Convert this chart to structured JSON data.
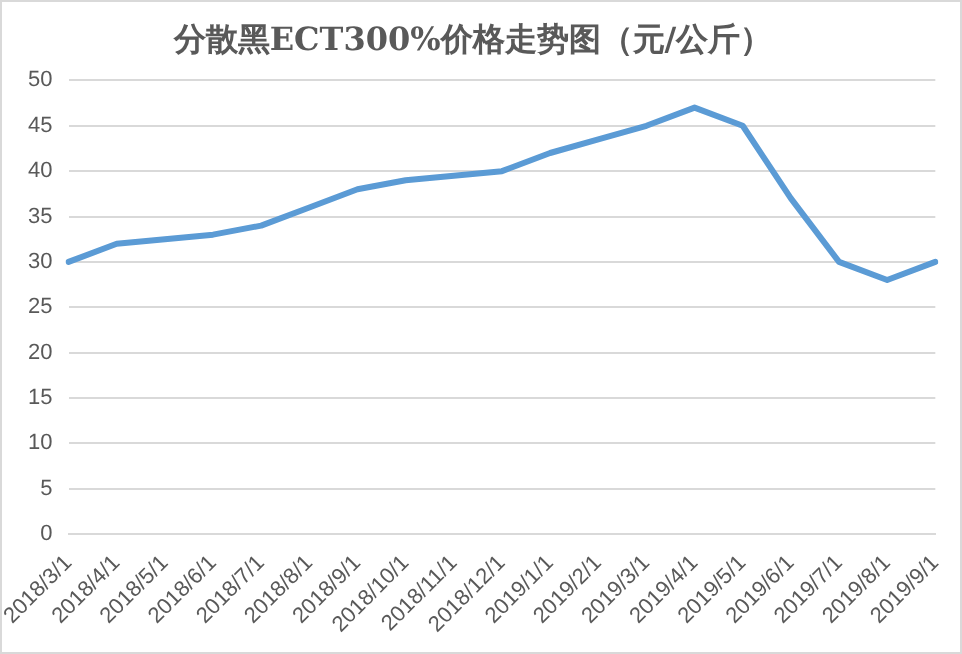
{
  "chart_data": {
    "type": "line",
    "title": "分散黑ECT300%价格走势图（元/公斤）",
    "categories": [
      "2018/3/1",
      "2018/4/1",
      "2018/5/1",
      "2018/6/1",
      "2018/7/1",
      "2018/8/1",
      "2018/9/1",
      "2018/10/1",
      "2018/11/1",
      "2018/12/1",
      "2019/1/1",
      "2019/2/1",
      "2019/3/1",
      "2019/4/1",
      "2019/5/1",
      "2019/6/1",
      "2019/7/1",
      "2019/8/1",
      "2019/9/1"
    ],
    "series": [
      {
        "color": "#5b9bd5",
        "values": [
          30,
          32,
          32.5,
          33,
          34,
          36,
          38,
          39,
          39.5,
          40,
          42,
          43.5,
          45,
          47,
          45,
          37,
          30,
          28,
          30
        ]
      }
    ],
    "ylim": [
      0,
      50
    ],
    "yticks": [
      0,
      5,
      10,
      15,
      20,
      25,
      30,
      35,
      40,
      45,
      50
    ],
    "grid": "y",
    "legend": false,
    "marker": "none",
    "line_style": "solid"
  }
}
